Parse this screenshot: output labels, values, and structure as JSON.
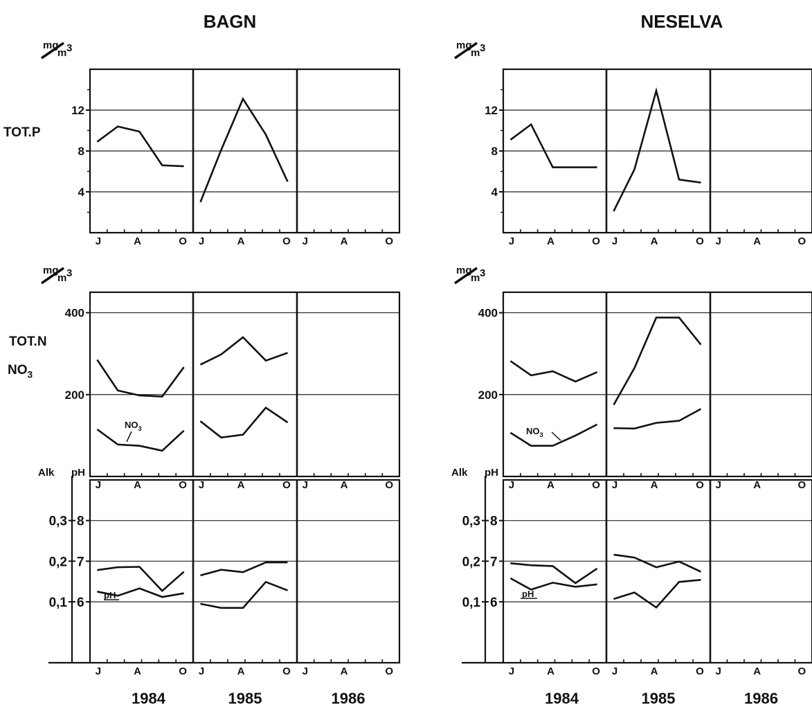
{
  "figure": {
    "left_title": "BAGN",
    "right_title": "NESELVA",
    "unit_top": "mg",
    "unit_bottom": "m3",
    "years": [
      "1984",
      "1985",
      "1986"
    ],
    "months": [
      "J",
      "A",
      "O"
    ],
    "label_totp": "TOT.P",
    "label_totn": "TOT.N",
    "label_no3": "NO3",
    "label_alk": "Alk",
    "label_ph": "pH",
    "no3_annotation": "NO3",
    "ph_annotation": "pH"
  },
  "chart_data": [
    {
      "type": "line",
      "panel": "TOT.P",
      "site": "BAGN",
      "ylabel": "TOT.P",
      "ylim": [
        0,
        16
      ],
      "yticks": [
        4,
        8,
        12
      ],
      "series": [
        {
          "year": "1984",
          "values": [
            8.9,
            10.4,
            9.9,
            6.6,
            6.5
          ]
        },
        {
          "year": "1985",
          "values": [
            3.0,
            8.1,
            13.1,
            9.6,
            5.0
          ]
        },
        {
          "year": "1986",
          "values": []
        }
      ]
    },
    {
      "type": "line",
      "panel": "TOT.P",
      "site": "NESELVA",
      "ylabel": "",
      "ylim": [
        0,
        16
      ],
      "yticks": [
        4,
        8,
        12
      ],
      "series": [
        {
          "year": "1984",
          "values": [
            9.1,
            10.6,
            6.4,
            6.4,
            6.4
          ]
        },
        {
          "year": "1985",
          "values": [
            2.1,
            6.2,
            13.9,
            5.2,
            4.9
          ]
        },
        {
          "year": "1986",
          "values": []
        }
      ]
    },
    {
      "type": "line",
      "panel": "TOT.N / NO3",
      "site": "BAGN",
      "ylabel": "TOT.N NO3",
      "ylim": [
        0,
        450
      ],
      "yticks": [
        200,
        400
      ],
      "series": [
        {
          "name": "TOT.N",
          "year": "1984",
          "values": [
            285,
            210,
            198,
            195,
            267
          ]
        },
        {
          "name": "TOT.N",
          "year": "1985",
          "values": [
            273,
            298,
            340,
            283,
            302
          ]
        },
        {
          "name": "NO3",
          "year": "1984",
          "values": [
            115,
            78,
            75,
            63,
            112
          ]
        },
        {
          "name": "NO3",
          "year": "1985",
          "values": [
            135,
            95,
            102,
            168,
            132
          ]
        }
      ]
    },
    {
      "type": "line",
      "panel": "TOT.N / NO3",
      "site": "NESELVA",
      "ylabel": "",
      "ylim": [
        0,
        450
      ],
      "yticks": [
        200,
        400
      ],
      "series": [
        {
          "name": "TOT.N",
          "year": "1984",
          "values": [
            282,
            247,
            257,
            232,
            255
          ]
        },
        {
          "name": "TOT.N",
          "year": "1985",
          "values": [
            175,
            265,
            388,
            388,
            322
          ]
        },
        {
          "name": "NO3",
          "year": "1984",
          "values": [
            107,
            75,
            75,
            100,
            127
          ]
        },
        {
          "name": "NO3",
          "year": "1985",
          "values": [
            118,
            117,
            131,
            136,
            165
          ]
        }
      ]
    },
    {
      "type": "line",
      "panel": "Alk pH",
      "site": "BAGN",
      "ylabel": "Alk pH",
      "ylim": [
        4.5,
        9.0
      ],
      "yticks_ph": [
        6,
        7,
        8
      ],
      "yticks_alk": [
        "0,1",
        "0,2",
        "0,3"
      ],
      "series": [
        {
          "name": "pH",
          "year": "1984",
          "values": [
            6.78,
            6.85,
            6.86,
            6.27,
            6.74
          ]
        },
        {
          "name": "pH",
          "year": "1985",
          "values": [
            6.65,
            6.79,
            6.73,
            6.97,
            6.97
          ]
        },
        {
          "name": "Alk",
          "year": "1984",
          "values": [
            6.25,
            6.15,
            6.33,
            6.12,
            6.21
          ]
        },
        {
          "name": "Alk",
          "year": "1985",
          "values": [
            5.95,
            5.85,
            5.85,
            6.49,
            6.28
          ]
        }
      ]
    },
    {
      "type": "line",
      "panel": "Alk pH",
      "site": "NESELVA",
      "ylabel": "",
      "ylim": [
        4.5,
        9.0
      ],
      "yticks_ph": [
        6,
        7,
        8
      ],
      "yticks_alk": [
        "0,1",
        "0,2",
        "0,3"
      ],
      "series": [
        {
          "name": "pH",
          "year": "1984",
          "values": [
            6.95,
            6.9,
            6.88,
            6.46,
            6.82
          ]
        },
        {
          "name": "pH",
          "year": "1985",
          "values": [
            7.16,
            7.09,
            6.85,
            6.99,
            6.74
          ]
        },
        {
          "name": "Alk",
          "year": "1984",
          "values": [
            6.58,
            6.3,
            6.47,
            6.37,
            6.43
          ]
        },
        {
          "name": "Alk",
          "year": "1985",
          "values": [
            6.07,
            6.23,
            5.86,
            6.49,
            6.54
          ]
        }
      ]
    }
  ]
}
